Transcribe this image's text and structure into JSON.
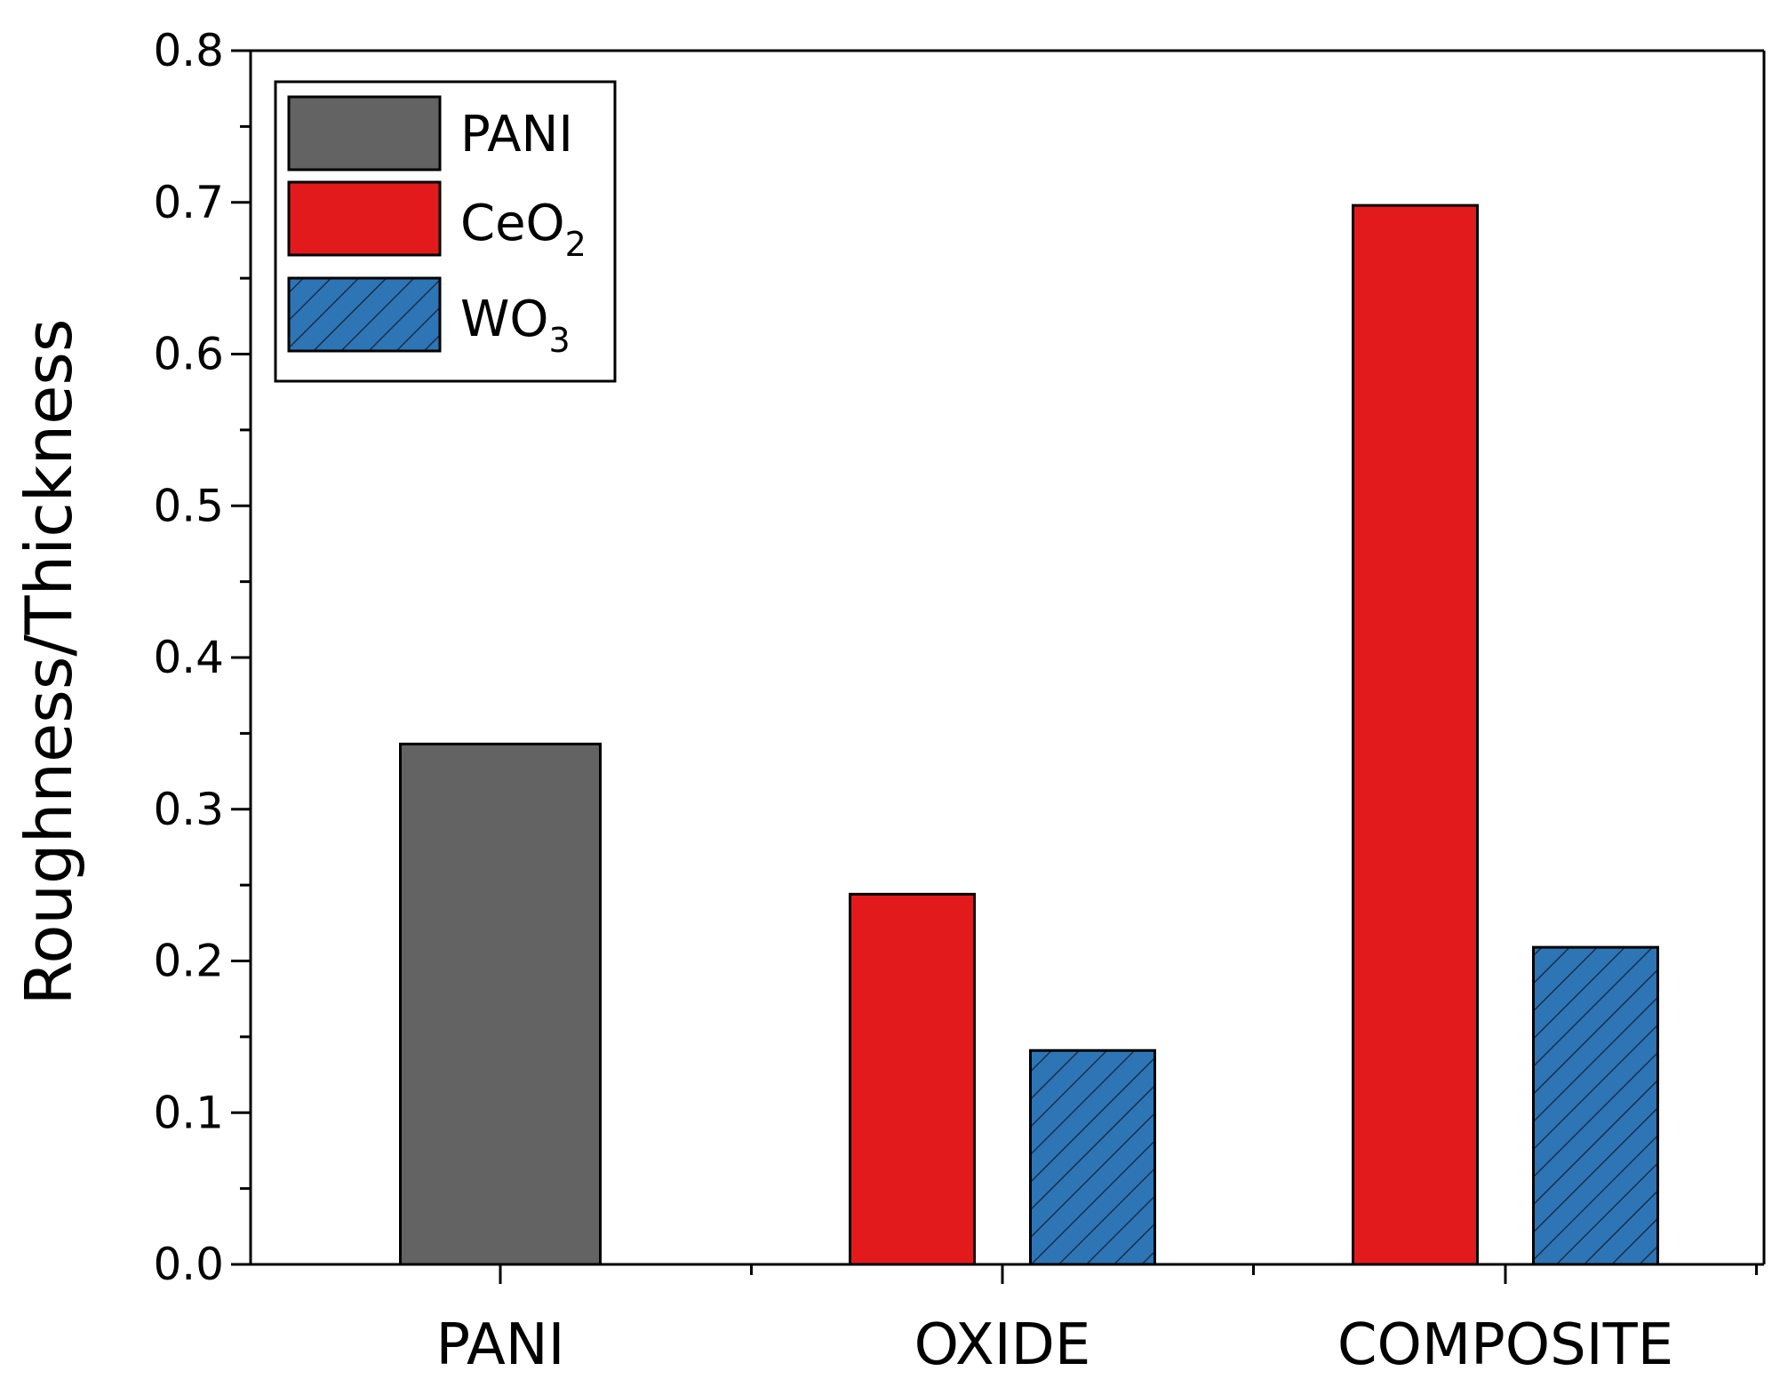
{
  "chart_data": {
    "type": "bar",
    "title": "",
    "xlabel": "",
    "ylabel": "Roughness/Thickness",
    "ylim": [
      0,
      0.8
    ],
    "yticks": [
      "0.0",
      "0.1",
      "0.2",
      "0.3",
      "0.4",
      "0.5",
      "0.6",
      "0.7",
      "0.8"
    ],
    "categories": [
      "PANI",
      "OXIDE",
      "COMPOSITE"
    ],
    "series": [
      {
        "name": "PANI",
        "label_main": "PANI",
        "label_sub": "",
        "color": "#636363",
        "pattern": "solid",
        "values": [
          0.343,
          null,
          null
        ]
      },
      {
        "name": "CeO2",
        "label_main": "CeO",
        "label_sub": "2",
        "color": "#e31a1c",
        "pattern": "solid",
        "values": [
          null,
          0.244,
          0.698
        ]
      },
      {
        "name": "WO3",
        "label_main": "WO",
        "label_sub": "3",
        "color": "#2e75b6",
        "pattern": "hatch",
        "values": [
          null,
          0.141,
          0.209
        ]
      }
    ],
    "legend_position": "top-left",
    "grid": false
  }
}
